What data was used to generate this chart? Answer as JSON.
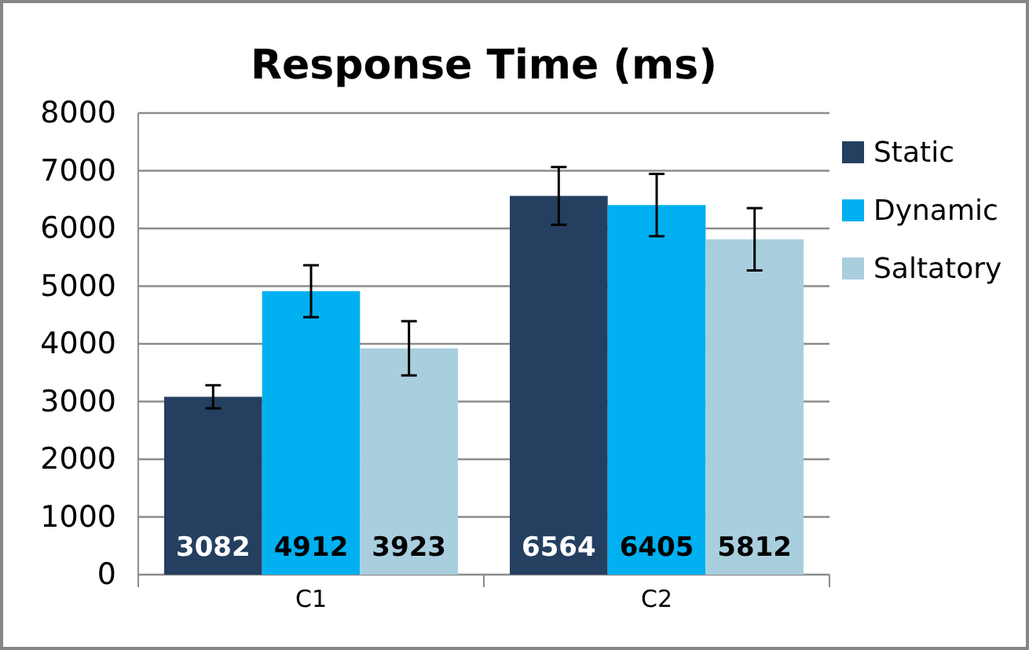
{
  "chart_data": {
    "type": "bar",
    "title": "Response Time (ms)",
    "categories": [
      "C1",
      "C2"
    ],
    "series": [
      {
        "name": "Static",
        "color": "#243f60",
        "values": [
          3082,
          6564
        ],
        "errors": [
          200,
          500
        ]
      },
      {
        "name": "Dynamic",
        "color": "#00b0f0",
        "values": [
          4912,
          6405
        ],
        "errors": [
          450,
          540
        ]
      },
      {
        "name": "Saltatory",
        "color": "#a9cfdf",
        "values": [
          3923,
          5812
        ],
        "errors": [
          470,
          540
        ]
      }
    ],
    "ylim": [
      0,
      8000
    ],
    "yticks": [
      0,
      1000,
      2000,
      3000,
      4000,
      5000,
      6000,
      7000,
      8000
    ],
    "grid": "y",
    "legend": "right",
    "data_labels": true
  }
}
